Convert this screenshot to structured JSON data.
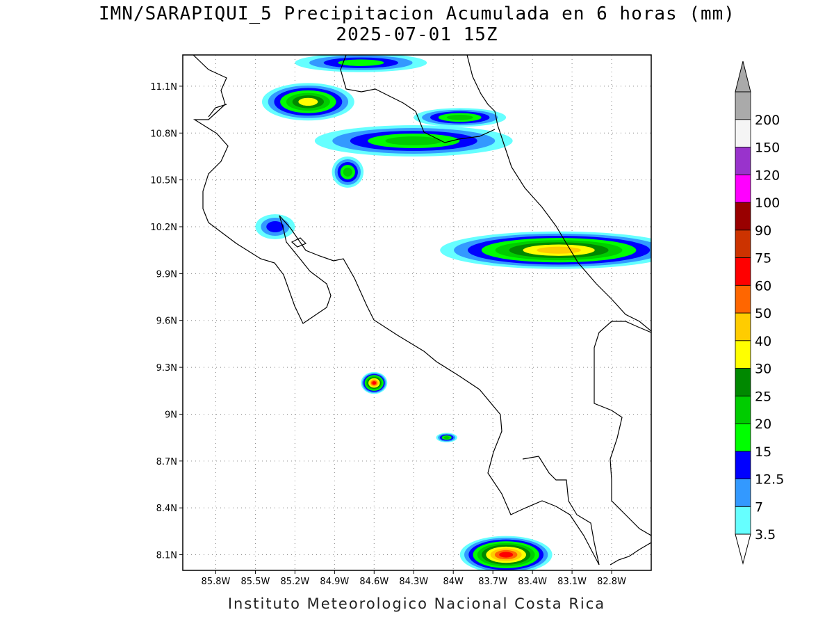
{
  "title": {
    "line1": "IMN/SARAPIQUI_5 Precipitacion Acumulada en 6 horas (mm)",
    "line2": "2025-07-01 15Z"
  },
  "credit": "Instituto Meteorologico Nacional Costa Rica",
  "map": {
    "lon_range": [
      -86.05,
      -82.5
    ],
    "lat_range": [
      8.0,
      11.3
    ],
    "lon_ticks": [
      {
        "value": -85.8,
        "label": "85.8W"
      },
      {
        "value": -85.5,
        "label": "85.5W"
      },
      {
        "value": -85.2,
        "label": "85.2W"
      },
      {
        "value": -84.9,
        "label": "84.9W"
      },
      {
        "value": -84.6,
        "label": "84.6W"
      },
      {
        "value": -84.3,
        "label": "84.3W"
      },
      {
        "value": -84.0,
        "label": "84W"
      },
      {
        "value": -83.7,
        "label": "83.7W"
      },
      {
        "value": -83.4,
        "label": "83.4W"
      },
      {
        "value": -83.1,
        "label": "83.1W"
      },
      {
        "value": -82.8,
        "label": "82.8W"
      }
    ],
    "lat_ticks": [
      {
        "value": 11.1,
        "label": "11.1N"
      },
      {
        "value": 10.8,
        "label": "10.8N"
      },
      {
        "value": 10.5,
        "label": "10.5N"
      },
      {
        "value": 10.2,
        "label": "10.2N"
      },
      {
        "value": 9.9,
        "label": "9.9N"
      },
      {
        "value": 9.6,
        "label": "9.6N"
      },
      {
        "value": 9.3,
        "label": "9.3N"
      },
      {
        "value": 9.0,
        "label": "9N"
      },
      {
        "value": 8.7,
        "label": "8.7N"
      },
      {
        "value": 8.4,
        "label": "8.4N"
      },
      {
        "value": 8.1,
        "label": "8.1N"
      }
    ],
    "grid": "dotted",
    "coastline_color": "#000000"
  },
  "colorbar": {
    "orientation": "vertical",
    "bins": [
      {
        "label": "3.5",
        "color": "#66ffff"
      },
      {
        "label": "7",
        "color": "#3399ff"
      },
      {
        "label": "12.5",
        "color": "#0000ff"
      },
      {
        "label": "15",
        "color": "#00ff00"
      },
      {
        "label": "20",
        "color": "#00cc00"
      },
      {
        "label": "25",
        "color": "#008800"
      },
      {
        "label": "30",
        "color": "#ffff00"
      },
      {
        "label": "40",
        "color": "#ffcc00"
      },
      {
        "label": "50",
        "color": "#ff6600"
      },
      {
        "label": "60",
        "color": "#ff0000"
      },
      {
        "label": "75",
        "color": "#cc3300"
      },
      {
        "label": "90",
        "color": "#990000"
      },
      {
        "label": "100",
        "color": "#ff00ff"
      },
      {
        "label": "120",
        "color": "#9933cc"
      },
      {
        "label": "150",
        "color": "#f5f5f5"
      },
      {
        "label": "200",
        "color": "#aaaaaa"
      }
    ],
    "triangle_top_color": "#aaaaaa",
    "triangle_bottom_color": "#ffffff"
  },
  "precip_cells": [
    {
      "name": "north-nicaragua-band",
      "lon": -84.7,
      "lat": 11.25,
      "rx": 0.5,
      "ry": 0.06,
      "max_mm": 15
    },
    {
      "name": "north-lake-cell",
      "lon": -85.1,
      "lat": 11.0,
      "rx": 0.35,
      "ry": 0.12,
      "max_mm": 30
    },
    {
      "name": "north-central-band",
      "lon": -84.3,
      "lat": 10.75,
      "rx": 0.75,
      "ry": 0.1,
      "max_mm": 20
    },
    {
      "name": "north-east-cell",
      "lon": -83.95,
      "lat": 10.9,
      "rx": 0.35,
      "ry": 0.06,
      "max_mm": 20
    },
    {
      "name": "upala-cell",
      "lon": -84.8,
      "lat": 10.55,
      "rx": 0.12,
      "ry": 0.1,
      "max_mm": 20
    },
    {
      "name": "nicoya-cell",
      "lon": -85.35,
      "lat": 10.2,
      "rx": 0.15,
      "ry": 0.08,
      "max_mm": 12.5
    },
    {
      "name": "caribbean-band",
      "lon": -83.2,
      "lat": 10.05,
      "rx": 0.9,
      "ry": 0.12,
      "max_mm": 40
    },
    {
      "name": "pacific-central-cell",
      "lon": -84.6,
      "lat": 9.2,
      "rx": 0.1,
      "ry": 0.07,
      "max_mm": 60
    },
    {
      "name": "osa-cell",
      "lon": -84.05,
      "lat": 8.85,
      "rx": 0.08,
      "ry": 0.03,
      "max_mm": 20
    },
    {
      "name": "south-panama-band",
      "lon": -83.6,
      "lat": 8.1,
      "rx": 0.35,
      "ry": 0.12,
      "max_mm": 60
    }
  ]
}
